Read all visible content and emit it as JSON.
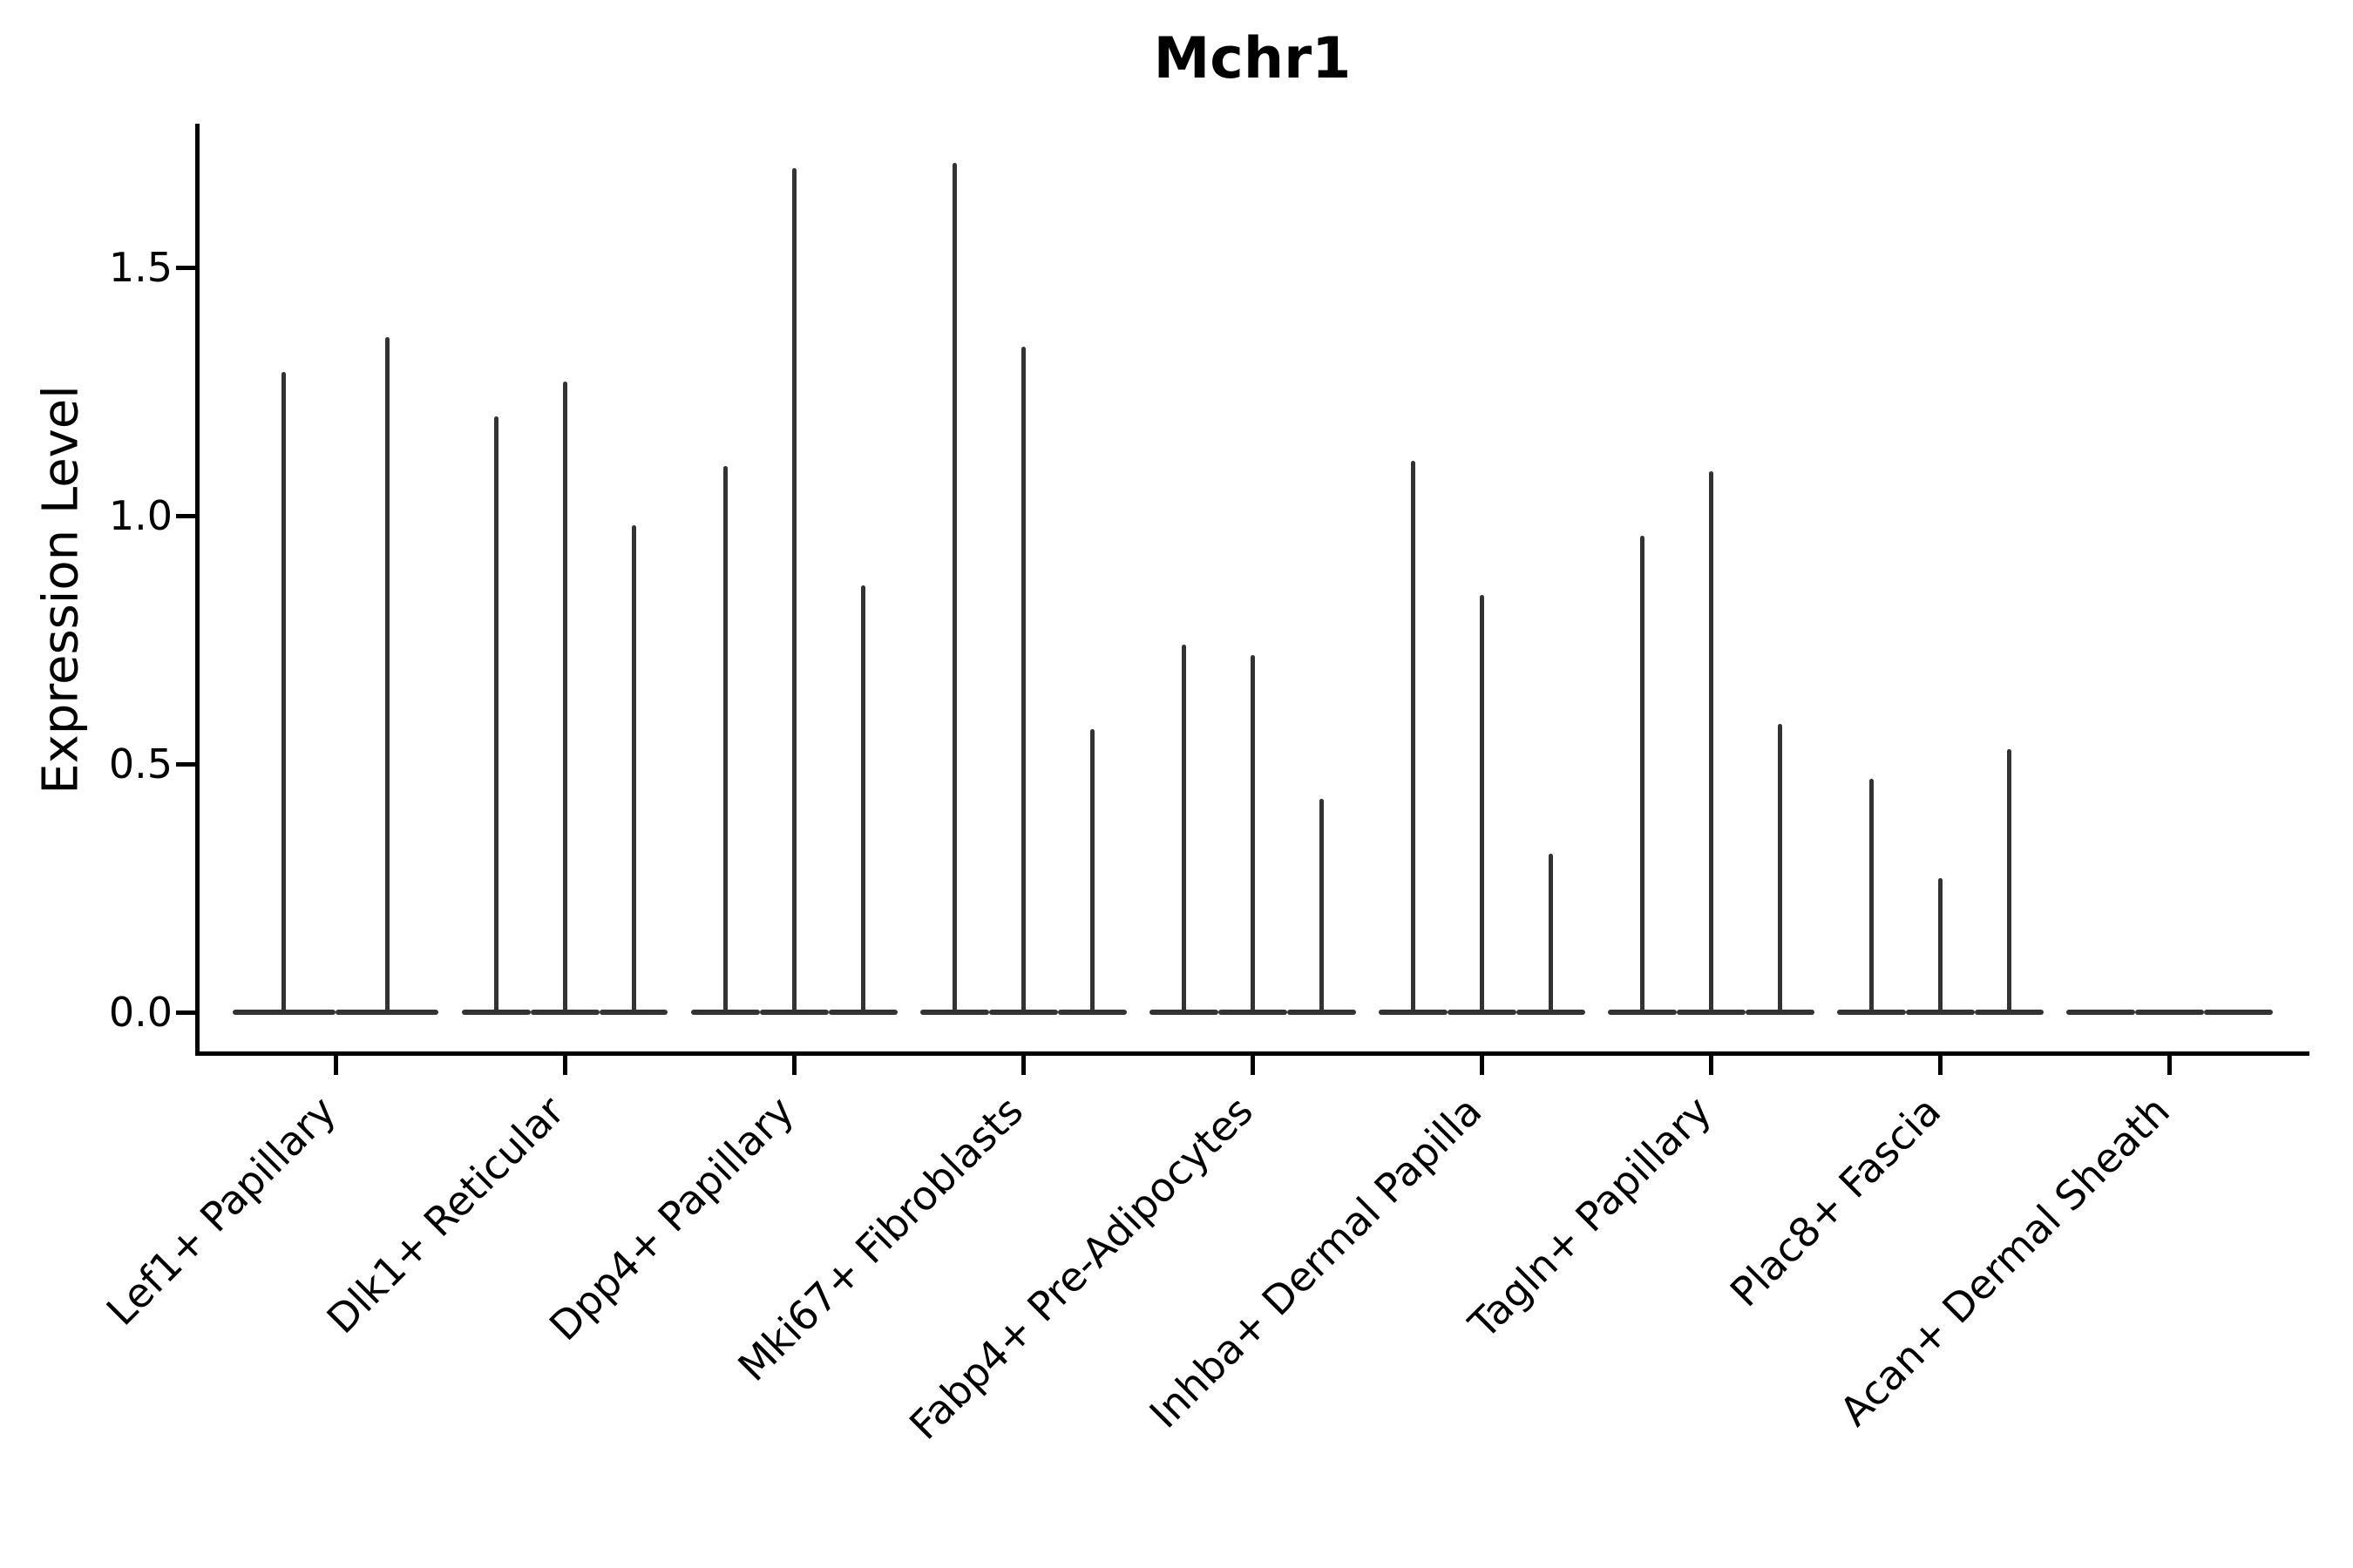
{
  "chart_data": {
    "type": "violin",
    "title": "Mchr1",
    "ylabel": "Expression Level",
    "xlabel": "",
    "legend": "none",
    "grid": false,
    "background": "#ffffff",
    "colors": {
      "violin": "#333333",
      "axis": "#000000",
      "text": "#000000"
    },
    "ylim": [
      -0.085,
      1.79
    ],
    "ytick_values": [
      0.0,
      0.5,
      1.0,
      1.5
    ],
    "ytick_labels": [
      "0.0",
      "0.5",
      "1.0",
      "1.5"
    ],
    "categories": [
      "Lef1+ Papillary",
      "Dlk1+ Reticular",
      "Dpp4+ Papillary",
      "Mki67+ Fibroblasts",
      "Fabp4+ Pre-Adipocytes",
      "Inhba+ Dermal Papilla",
      "Tagln+ Papillary",
      "Plac8+ Fascia",
      "Acan+ Dermal Sheath"
    ],
    "groups": [
      {
        "category": "Lef1+ Papillary",
        "violin_maxima": [
          1.29,
          1.36
        ]
      },
      {
        "category": "Dlk1+ Reticular",
        "violin_maxima": [
          1.2,
          1.27,
          0.98
        ]
      },
      {
        "category": "Dpp4+ Papillary",
        "violin_maxima": [
          1.1,
          1.7,
          0.86
        ]
      },
      {
        "category": "Mki67+ Fibroblasts",
        "violin_maxima": [
          1.71,
          1.34,
          0.57
        ]
      },
      {
        "category": "Fabp4+ Pre-Adipocytes",
        "violin_maxima": [
          0.74,
          0.72,
          0.43
        ]
      },
      {
        "category": "Inhba+ Dermal Papilla",
        "violin_maxima": [
          1.11,
          0.84,
          0.32
        ]
      },
      {
        "category": "Tagln+ Papillary",
        "violin_maxima": [
          0.96,
          1.09,
          0.58
        ]
      },
      {
        "category": "Plac8+ Fascia",
        "violin_maxima": [
          0.47,
          0.27,
          0.53
        ]
      },
      {
        "category": "Acan+ Dermal Sheath",
        "violin_maxima": [
          0.0,
          0.0,
          0.0
        ]
      }
    ],
    "note": "Violin plot; nearly all mass at 0 (flat base) with thin spikes up to per-violin maximum expression."
  }
}
